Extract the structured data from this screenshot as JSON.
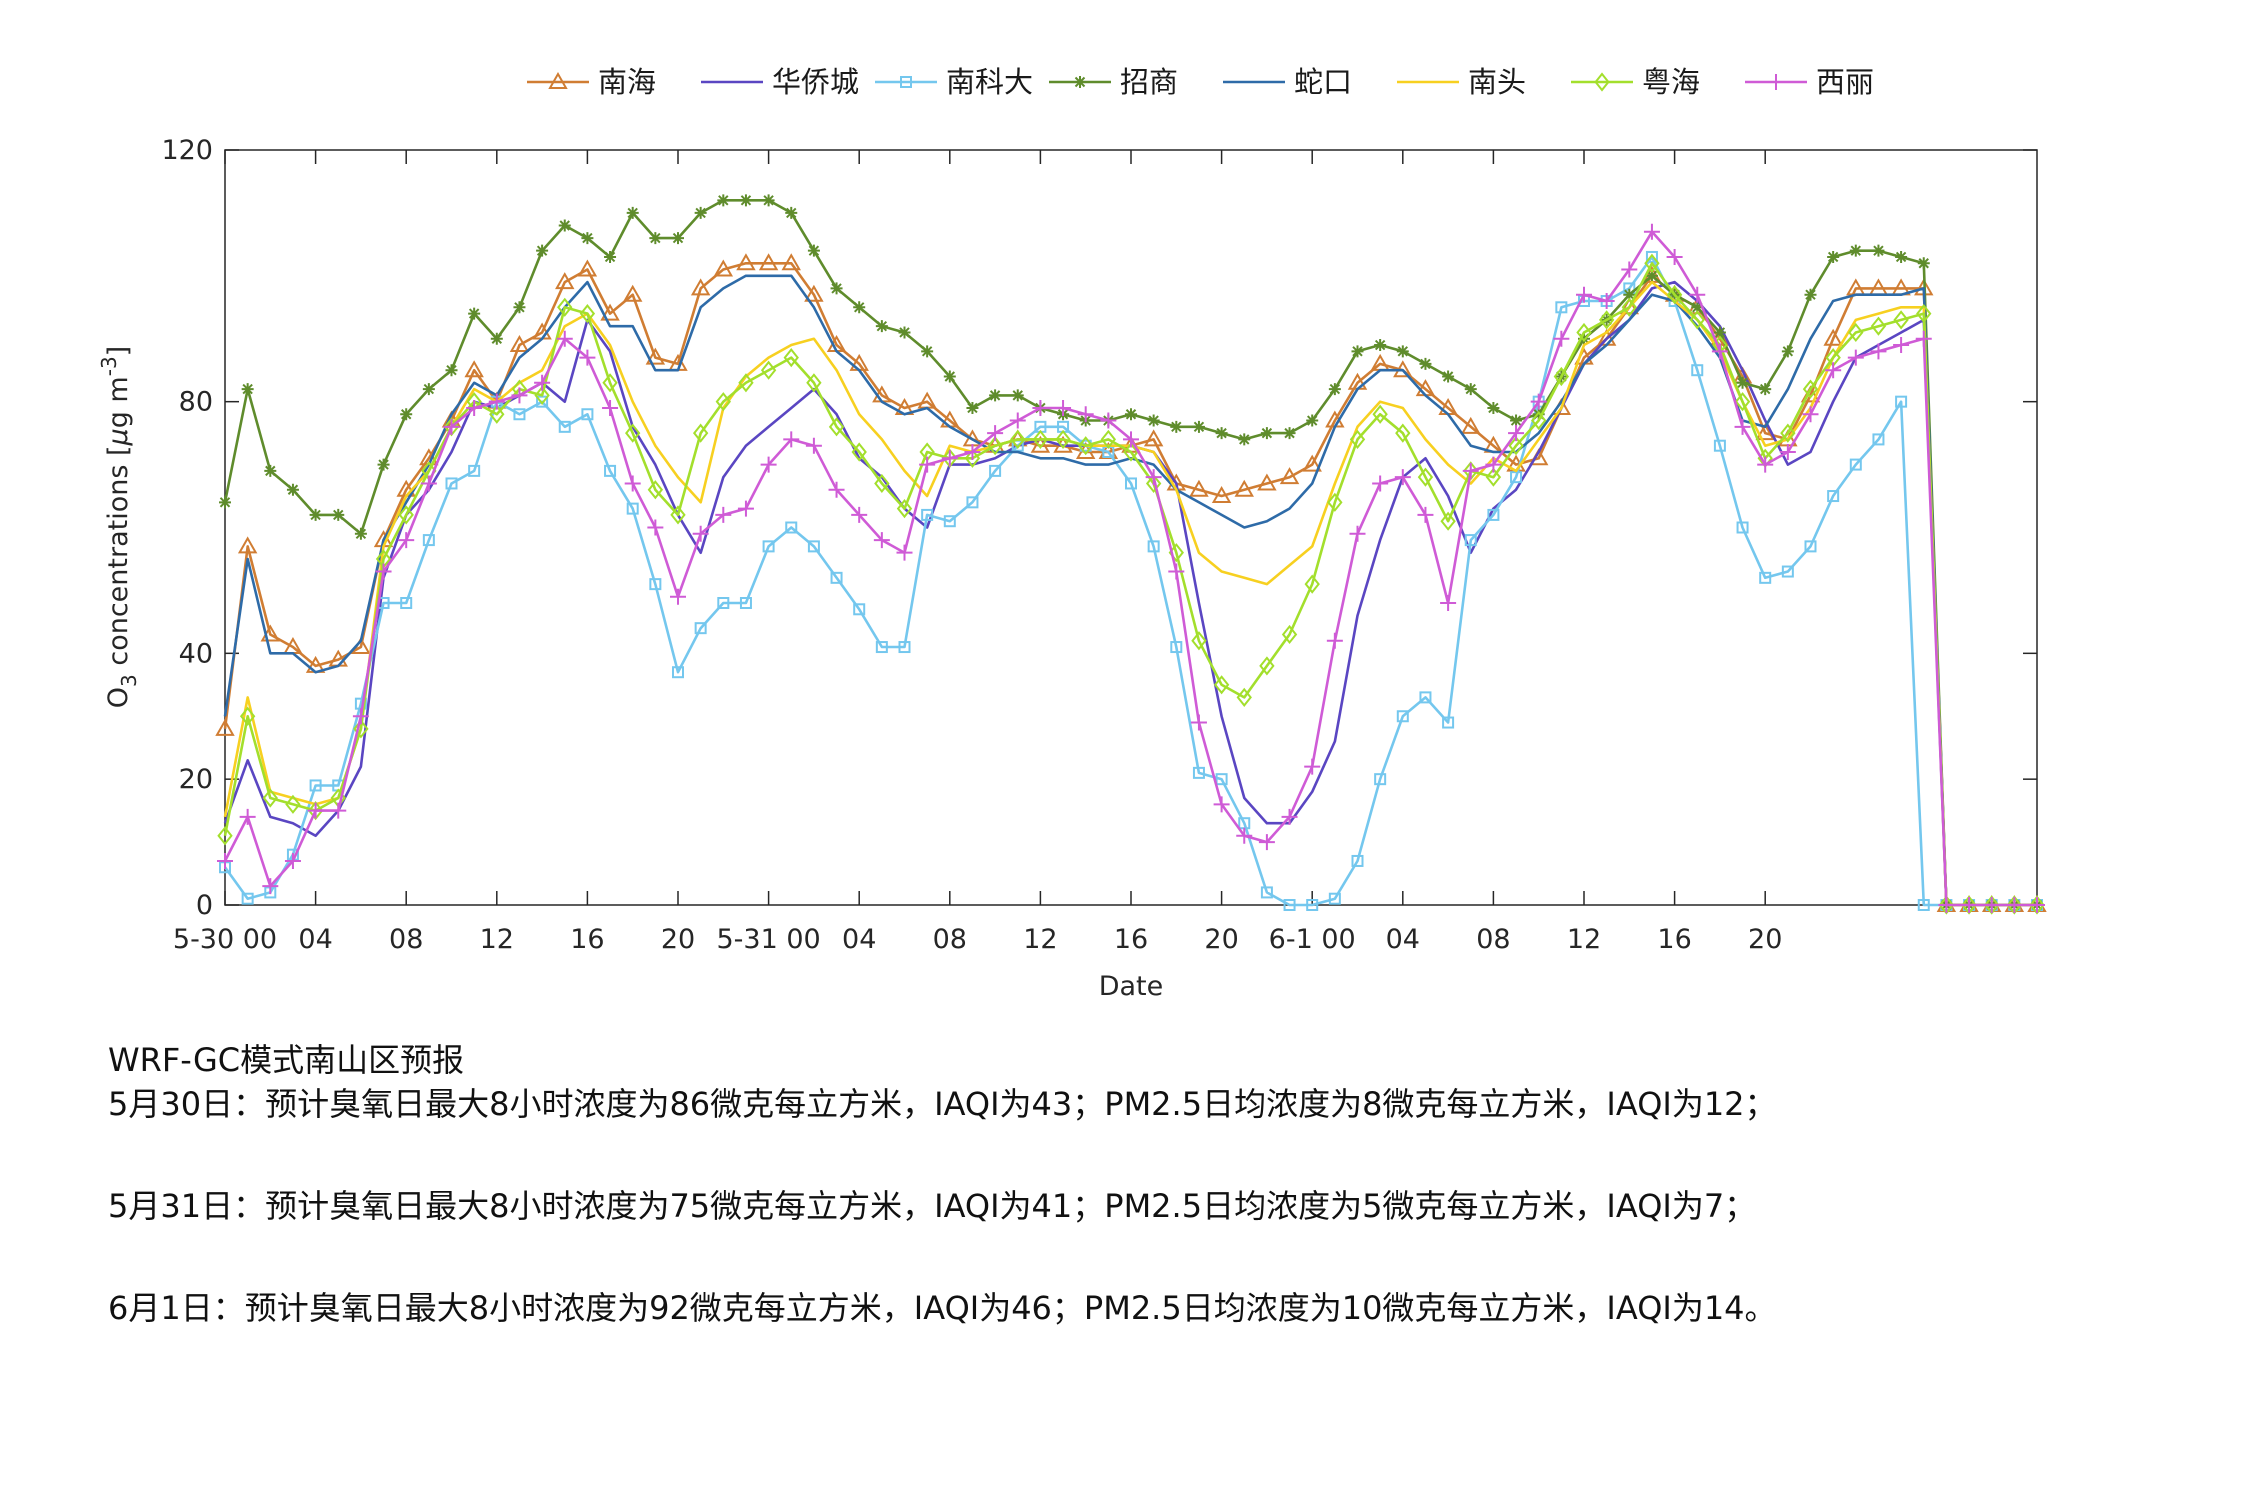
{
  "chart_data": {
    "type": "line",
    "title": "",
    "xlabel": "Date",
    "ylabel": "O3 concentrations [μg m-3]",
    "ylabel_parts": {
      "main": "O",
      "sub": "3",
      "mid": " concentrations [",
      "mu": "μ",
      "g": "g m",
      "sup": "-3",
      "end": "]"
    },
    "ylim": [
      0,
      120
    ],
    "yticks": [
      0,
      20,
      40,
      80,
      120
    ],
    "x_hour_max": 80,
    "xticks": [
      {
        "h": 0,
        "label": "5-30 00"
      },
      {
        "h": 4,
        "label": "04"
      },
      {
        "h": 8,
        "label": "08"
      },
      {
        "h": 12,
        "label": "12"
      },
      {
        "h": 16,
        "label": "16"
      },
      {
        "h": 20,
        "label": "20"
      },
      {
        "h": 24,
        "label": "5-31 00"
      },
      {
        "h": 28,
        "label": "04"
      },
      {
        "h": 32,
        "label": "08"
      },
      {
        "h": 36,
        "label": "12"
      },
      {
        "h": 40,
        "label": "16"
      },
      {
        "h": 44,
        "label": "20"
      },
      {
        "h": 48,
        "label": "6-1 00"
      },
      {
        "h": 52,
        "label": "04"
      },
      {
        "h": 56,
        "label": "08"
      },
      {
        "h": 60,
        "label": "12"
      },
      {
        "h": 64,
        "label": "16"
      },
      {
        "h": 68,
        "label": "20"
      }
    ],
    "grid": false,
    "legend_position": "top",
    "series": [
      {
        "name": "南海",
        "color": "#d07d33",
        "marker": "triangle",
        "values": [
          28,
          57,
          43,
          41,
          38,
          39,
          41,
          58,
          66,
          71,
          77,
          85,
          80,
          89,
          91,
          99,
          101,
          94,
          97,
          87,
          86,
          98,
          101,
          102,
          102,
          102,
          97,
          89,
          86,
          81,
          79,
          80,
          77,
          74,
          73,
          74,
          73,
          73,
          72,
          72,
          73,
          74,
          67,
          66,
          65,
          66,
          67,
          68,
          70,
          77,
          83,
          86,
          85,
          82,
          79,
          76,
          73,
          70,
          71,
          79,
          87,
          90,
          95,
          100,
          97,
          95,
          90,
          84,
          75,
          74,
          81,
          90,
          98,
          98,
          98,
          98,
          0,
          0,
          0,
          0,
          0
        ]
      },
      {
        "name": "华侨城",
        "color": "#5a46c2",
        "marker": "none",
        "values": [
          13,
          23,
          14,
          13,
          11,
          15,
          22,
          52,
          62,
          66,
          72,
          80,
          79,
          81,
          83,
          80,
          93,
          88,
          76,
          70,
          62,
          56,
          68,
          73,
          76,
          79,
          82,
          78,
          71,
          68,
          63,
          60,
          70,
          70,
          71,
          73,
          74,
          73,
          73,
          73,
          73,
          72,
          67,
          48,
          30,
          17,
          13,
          13,
          18,
          26,
          46,
          58,
          68,
          71,
          65,
          56,
          63,
          66,
          72,
          79,
          86,
          90,
          93,
          98,
          99,
          96,
          92,
          85,
          77,
          70,
          72,
          80,
          87,
          89,
          91,
          93,
          0,
          0,
          0,
          0,
          0
        ]
      },
      {
        "name": "南科大",
        "color": "#74c7ee",
        "marker": "square",
        "values": [
          6,
          1,
          2,
          8,
          19,
          19,
          32,
          48,
          48,
          58,
          67,
          69,
          80,
          78,
          80,
          76,
          78,
          69,
          63,
          51,
          37,
          44,
          48,
          48,
          57,
          60,
          57,
          52,
          47,
          41,
          41,
          62,
          61,
          64,
          69,
          73,
          76,
          76,
          73,
          72,
          67,
          57,
          41,
          21,
          20,
          13,
          2,
          0,
          0,
          1,
          7,
          20,
          30,
          33,
          29,
          58,
          62,
          68,
          80,
          95,
          96,
          96,
          98,
          103,
          96,
          85,
          73,
          60,
          52,
          53,
          57,
          65,
          70,
          74,
          80,
          0,
          0,
          0,
          0,
          0,
          0
        ]
      },
      {
        "name": "招商",
        "color": "#5f8c2c",
        "marker": "star",
        "values": [
          64,
          82,
          69,
          66,
          62,
          62,
          59,
          70,
          78,
          82,
          85,
          94,
          90,
          95,
          104,
          108,
          106,
          103,
          110,
          106,
          106,
          110,
          112,
          112,
          112,
          110,
          104,
          98,
          95,
          92,
          91,
          88,
          84,
          79,
          81,
          81,
          79,
          78,
          77,
          77,
          78,
          77,
          76,
          76,
          75,
          74,
          75,
          75,
          77,
          82,
          88,
          89,
          88,
          86,
          84,
          82,
          79,
          77,
          78,
          84,
          90,
          93,
          97,
          100,
          97,
          95,
          91,
          83,
          82,
          88,
          97,
          103,
          104,
          104,
          103,
          102,
          0,
          0,
          0,
          0,
          0
        ]
      },
      {
        "name": "蛇口",
        "color": "#2e6ba8",
        "marker": "none",
        "values": [
          30,
          55,
          40,
          40,
          37,
          38,
          42,
          58,
          64,
          70,
          78,
          83,
          81,
          87,
          90,
          95,
          99,
          92,
          92,
          85,
          85,
          95,
          98,
          100,
          100,
          100,
          95,
          88,
          85,
          80,
          78,
          79,
          76,
          74,
          72,
          72,
          71,
          71,
          70,
          70,
          71,
          70,
          66,
          64,
          62,
          60,
          61,
          63,
          67,
          76,
          82,
          85,
          85,
          81,
          78,
          73,
          72,
          72,
          75,
          80,
          86,
          89,
          93,
          97,
          96,
          92,
          87,
          77,
          76,
          82,
          90,
          96,
          97,
          97,
          97,
          98,
          0,
          0,
          0,
          0,
          0
        ]
      },
      {
        "name": "南头",
        "color": "#f7d020",
        "marker": "none",
        "values": [
          14,
          33,
          18,
          17,
          16,
          17,
          28,
          57,
          65,
          69,
          76,
          82,
          80,
          83,
          85,
          92,
          94,
          89,
          80,
          73,
          68,
          64,
          79,
          84,
          87,
          89,
          90,
          85,
          78,
          74,
          69,
          65,
          73,
          72,
          73,
          74,
          74,
          74,
          73,
          73,
          73,
          72,
          66,
          56,
          53,
          52,
          51,
          54,
          57,
          67,
          76,
          80,
          79,
          74,
          70,
          67,
          71,
          69,
          74,
          79,
          89,
          91,
          95,
          99,
          96,
          93,
          88,
          80,
          73,
          74,
          79,
          87,
          93,
          94,
          95,
          95,
          0,
          0,
          0,
          0,
          0
        ]
      },
      {
        "name": "粤海",
        "color": "#a3df2c",
        "marker": "diamond",
        "values": [
          11,
          30,
          17,
          16,
          15,
          17,
          28,
          55,
          62,
          69,
          76,
          80,
          78,
          82,
          81,
          95,
          94,
          83,
          75,
          66,
          62,
          75,
          80,
          83,
          85,
          87,
          83,
          76,
          72,
          67,
          63,
          72,
          71,
          71,
          73,
          74,
          74,
          74,
          73,
          74,
          72,
          67,
          56,
          42,
          35,
          33,
          38,
          43,
          51,
          64,
          74,
          78,
          75,
          68,
          61,
          69,
          68,
          73,
          77,
          84,
          91,
          93,
          95,
          102,
          97,
          93,
          89,
          80,
          71,
          75,
          82,
          87,
          91,
          92,
          93,
          94,
          0,
          0,
          0,
          0,
          0
        ]
      },
      {
        "name": "西丽",
        "color": "#cf5bd6",
        "marker": "plus",
        "values": [
          7,
          14,
          3,
          7,
          15,
          15,
          30,
          53,
          58,
          67,
          76,
          79,
          80,
          81,
          83,
          90,
          87,
          79,
          67,
          60,
          49,
          59,
          62,
          63,
          70,
          74,
          73,
          66,
          62,
          58,
          56,
          70,
          71,
          72,
          75,
          77,
          79,
          79,
          78,
          77,
          74,
          68,
          53,
          29,
          16,
          11,
          10,
          14,
          22,
          42,
          59,
          67,
          68,
          62,
          48,
          69,
          70,
          75,
          80,
          90,
          97,
          96,
          101,
          107,
          103,
          97,
          88,
          76,
          70,
          72,
          78,
          85,
          87,
          88,
          89,
          90,
          0,
          0,
          0,
          0,
          0
        ]
      }
    ]
  },
  "forecast": {
    "header": "WRF-GC模式南山区预报",
    "lines": [
      "5月30日：预计臭氧日最大8小时浓度为86微克每立方米，IAQI为43；PM2.5日均浓度为8微克每立方米，IAQI为12；",
      "5月31日：预计臭氧日最大8小时浓度为75微克每立方米，IAQI为41；PM2.5日均浓度为5微克每立方米，IAQI为7；",
      "6月1日：预计臭氧日最大8小时浓度为92微克每立方米，IAQI为46；PM2.5日均浓度为10微克每立方米，IAQI为14。"
    ]
  }
}
